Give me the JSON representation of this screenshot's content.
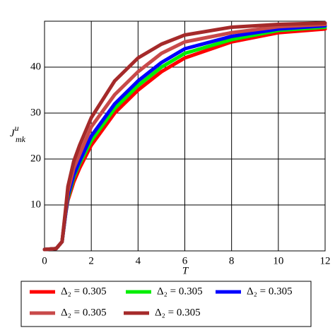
{
  "chart_data": {
    "type": "line",
    "x_label": "T",
    "y_label": {
      "base": "J",
      "sup": "u",
      "sub": "mk"
    },
    "x": [
      0,
      0.5,
      0.75,
      0.9,
      1,
      1.25,
      1.5,
      2,
      3,
      4,
      5,
      6,
      8,
      10,
      12
    ],
    "series": [
      {
        "name": "Δ₂ = 0.305",
        "color": "#ff0000",
        "values": [
          0.3,
          0.5,
          2,
          8,
          11,
          15,
          18,
          23,
          30,
          35,
          39,
          42,
          45.5,
          47.5,
          48.3
        ]
      },
      {
        "name": "Δ₂ = 0.305",
        "color": "#00ee00",
        "values": [
          0.3,
          0.5,
          2,
          8,
          11.5,
          16,
          19,
          24,
          31,
          36,
          40,
          43,
          46,
          48,
          48.7
        ]
      },
      {
        "name": "Δ₂ = 0.305",
        "color": "#0000ff",
        "values": [
          0.3,
          0.5,
          2,
          8,
          12,
          16.5,
          19.5,
          25,
          32,
          37,
          41,
          44,
          46.7,
          48.3,
          49
        ]
      },
      {
        "name": "Δ₂ = 0.305",
        "color": "#c84a4a",
        "values": [
          0.3,
          0.5,
          2,
          8.5,
          13,
          18,
          21,
          27,
          34,
          39,
          43,
          45.5,
          47.5,
          48.8,
          49.3
        ]
      },
      {
        "name": "Δ₂ = 0.305",
        "color": "#a52a2a",
        "values": [
          0.3,
          0.5,
          2,
          9,
          14,
          19.5,
          23,
          29,
          37,
          42,
          45,
          47,
          48.7,
          49.3,
          49.6
        ]
      }
    ],
    "xlim": [
      0,
      12
    ],
    "ylim": [
      0,
      50
    ],
    "xticks": [
      0,
      2,
      4,
      6,
      8,
      10,
      12
    ],
    "yticks": [
      10,
      20,
      30,
      40
    ],
    "grid": true
  }
}
